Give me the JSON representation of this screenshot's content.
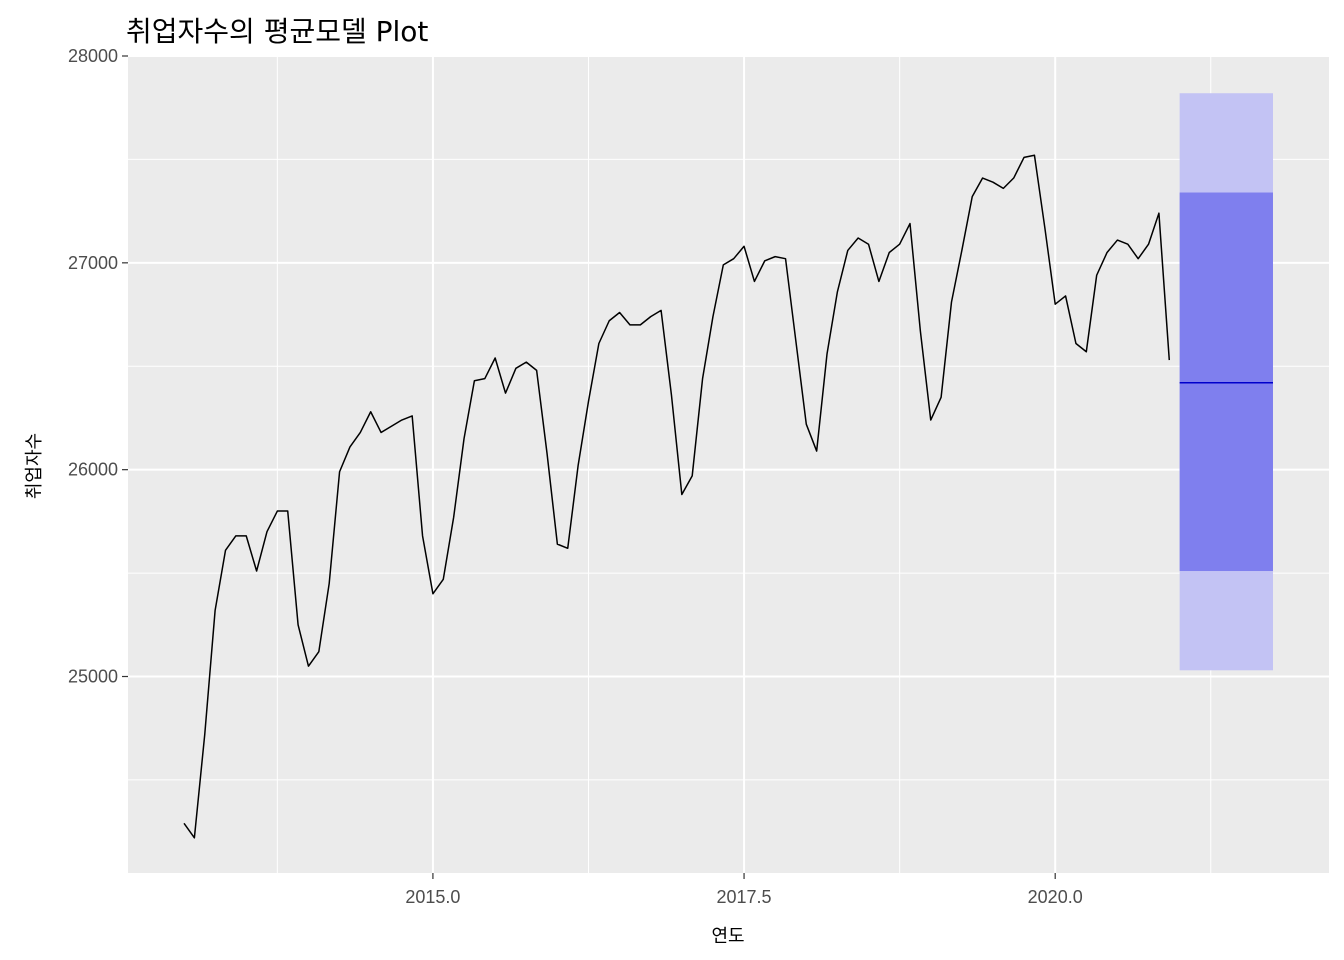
{
  "chart_data": {
    "type": "line",
    "title": "취업자수의 평균모델 Plot",
    "xlabel": "연도",
    "ylabel": "취업자수",
    "x_ticks": [
      2015.0,
      2017.5,
      2020.0
    ],
    "x_tick_labels": [
      "2015.0",
      "2017.5",
      "2020.0"
    ],
    "y_ticks": [
      25000,
      26000,
      27000,
      28000
    ],
    "y_tick_labels": [
      "25000",
      "26000",
      "27000",
      "28000"
    ],
    "xlim": [
      2012.55,
      2022.2
    ],
    "ylim": [
      24050,
      28000
    ],
    "grid": true,
    "colors": {
      "panel": "#ebebeb",
      "grid": "#ffffff",
      "line": "#000000",
      "forecast_mean": "#0000cc",
      "pi80": "#7f7fee",
      "pi95": "#c3c3f4"
    },
    "series": [
      {
        "x_start": 2013.0,
        "frequency": 12,
        "values": [
          24290,
          24220,
          24720,
          25320,
          25610,
          25680,
          25680,
          25510,
          25700,
          25800,
          25800,
          25250,
          25050,
          25120,
          25450,
          25990,
          26110,
          26180,
          26280,
          26180,
          26210,
          26240,
          26260,
          25680,
          25400,
          25470,
          25770,
          26150,
          26430,
          26440,
          26540,
          26370,
          26490,
          26520,
          26480,
          26080,
          25640,
          25620,
          26020,
          26330,
          26610,
          26720,
          26760,
          26700,
          26700,
          26740,
          26770,
          26360,
          25880,
          25970,
          26440,
          26740,
          26990,
          27020,
          27080,
          26910,
          27010,
          27030,
          27020,
          26620,
          26220,
          26090,
          26560,
          26860,
          27060,
          27120,
          27090,
          26910,
          27050,
          27090,
          27190,
          26670,
          26240,
          26350,
          26810,
          27060,
          27320,
          27410,
          27390,
          27360,
          27410,
          27510,
          27520,
          27170,
          26800,
          26840,
          26610,
          26570,
          26940,
          27050,
          27110,
          27090,
          27020,
          27090,
          27240,
          26530
        ]
      }
    ],
    "forecast": {
      "x_start": 2021.0,
      "x_end": 2021.75,
      "mean": 26420,
      "lo80": 25510,
      "hi80": 27340,
      "lo95": 25030,
      "hi95": 27820
    }
  }
}
